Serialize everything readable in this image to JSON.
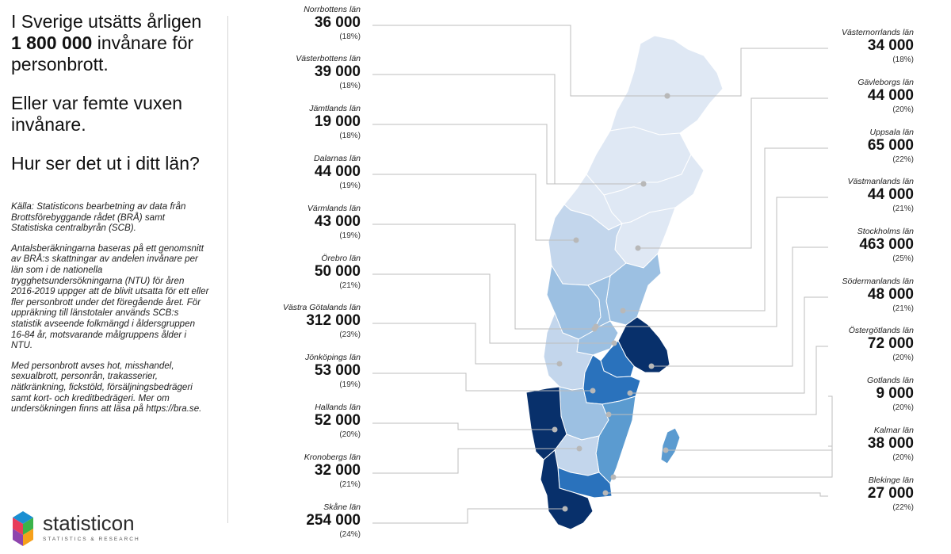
{
  "headline": {
    "p1_a": "I Sverige utsätts årligen",
    "p1_num": "1 800 000",
    "p1_b": "invånare för personbrott.",
    "p2": "Eller var femte vuxen invånare.",
    "p3": "Hur ser det ut i ditt län?"
  },
  "source": {
    "p1": "Källa: Statisticons bearbetning av data från Brottsförebyggande rådet (BRÅ) samt Statistiska centralbyrån (SCB).",
    "p2": "Antalsberäkningarna baseras på ett genomsnitt av BRÅ:s skattningar av andelen invånare per län som i de nationella trygghetsundersökningarna (NTU) för åren 2016-2019 uppger att de blivit utsatta för ett eller fler personbrott under det föregående året. För uppräkning till länstotaler används SCB:s statistik avseende folkmängd i åldersgruppen 16-84 år, motsvarande målgruppens ålder i NTU.",
    "p3": "Med personbrott avses hot, misshandel, sexualbrott, personrån, trakasserier, nätkränkning, fickstöld, försäljningsbedrägeri samt kort- och kreditbedrägeri. Mer om undersökningen finns att läsa på https://bra.se."
  },
  "logo": {
    "name": "statisticon",
    "tagline": "STATISTICS & RESEARCH"
  },
  "colors": {
    "c1": "#dfe8f4",
    "c2": "#c3d6ec",
    "c3": "#9cc0e2",
    "c4": "#5b9bd0",
    "c5": "#2a72bc",
    "c6": "#08306b",
    "dot": "#b8b8b8",
    "leader": "#bdbdbd"
  },
  "left_regions": [
    {
      "name": "Norrbottens län",
      "value": "36 000",
      "pct": "(18%)"
    },
    {
      "name": "Västerbottens län",
      "value": "39 000",
      "pct": "(18%)"
    },
    {
      "name": "Jämtlands län",
      "value": "19 000",
      "pct": "(18%)"
    },
    {
      "name": "Dalarnas län",
      "value": "44 000",
      "pct": "(19%)"
    },
    {
      "name": "Värmlands län",
      "value": "43 000",
      "pct": "(19%)"
    },
    {
      "name": "Örebro län",
      "value": "50 000",
      "pct": "(21%)"
    },
    {
      "name": "Västra Götalands län",
      "value": "312 000",
      "pct": "(23%)"
    },
    {
      "name": "Jönköpings län",
      "value": "53 000",
      "pct": "(19%)"
    },
    {
      "name": "Hallands län",
      "value": "52 000",
      "pct": "(20%)"
    },
    {
      "name": "Kronobergs län",
      "value": "32 000",
      "pct": "(21%)"
    },
    {
      "name": "Skåne län",
      "value": "254 000",
      "pct": "(24%)"
    }
  ],
  "right_regions": [
    {
      "name": "Västernorrlands län",
      "value": "34 000",
      "pct": "(18%)"
    },
    {
      "name": "Gävleborgs län",
      "value": "44 000",
      "pct": "(20%)"
    },
    {
      "name": "Uppsala län",
      "value": "65 000",
      "pct": "(22%)"
    },
    {
      "name": "Västmanlands län",
      "value": "44 000",
      "pct": "(21%)"
    },
    {
      "name": "Stockholms län",
      "value": "463 000",
      "pct": "(25%)"
    },
    {
      "name": "Södermanlands län",
      "value": "48 000",
      "pct": "(21%)"
    },
    {
      "name": "Östergötlands län",
      "value": "72 000",
      "pct": "(20%)"
    },
    {
      "name": "Gotlands län",
      "value": "9 000",
      "pct": "(20%)"
    },
    {
      "name": "Kalmar län",
      "value": "38 000",
      "pct": "(20%)"
    },
    {
      "name": "Blekinge län",
      "value": "27 000",
      "pct": "(22%)"
    }
  ]
}
